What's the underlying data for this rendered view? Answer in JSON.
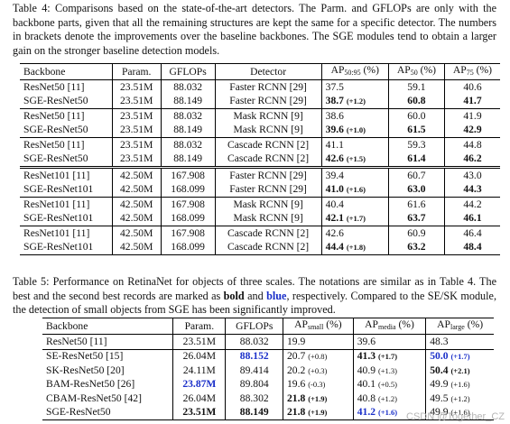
{
  "table4": {
    "caption": "Table 4: Comparisons based on the state-of-the-art detectors. The Parm. and GFLOPs are only with the backbone parts, given that all the remaining structures are kept the same for a specific detector. The numbers in brackets denote the improvements over the baseline backbones. The SGE modules tend to obtain a larger gain on the stronger baseline detection models.",
    "headers": [
      "Backbone",
      "Param.",
      "GFLOPs",
      "Detector",
      "AP",
      "(%)",
      "AP",
      "(%)",
      "AP",
      "(%)"
    ],
    "header_subs": [
      "50:95",
      "50",
      "75"
    ],
    "groups": [
      [
        {
          "backbone": "ResNet50 [11]",
          "param": "23.51M",
          "gflops": "88.032",
          "detector": "Faster RCNN [29]",
          "ap": "37.5",
          "ap50": "59.1",
          "ap75": "40.6",
          "bold": false
        },
        {
          "backbone": "SGE-ResNet50",
          "param": "23.51M",
          "gflops": "88.149",
          "detector": "Faster RCNN [29]",
          "ap": "38.7",
          "imp": "(+1.2)",
          "ap50": "60.8",
          "ap75": "41.7",
          "bold": true
        }
      ],
      [
        {
          "backbone": "ResNet50 [11]",
          "param": "23.51M",
          "gflops": "88.032",
          "detector": "Mask RCNN [9]",
          "ap": "38.6",
          "ap50": "60.0",
          "ap75": "41.9",
          "bold": false
        },
        {
          "backbone": "SGE-ResNet50",
          "param": "23.51M",
          "gflops": "88.149",
          "detector": "Mask RCNN [9]",
          "ap": "39.6",
          "imp": "(+1.0)",
          "ap50": "61.5",
          "ap75": "42.9",
          "bold": true
        }
      ],
      [
        {
          "backbone": "ResNet50 [11]",
          "param": "23.51M",
          "gflops": "88.032",
          "detector": "Cascade RCNN [2]",
          "ap": "41.1",
          "ap50": "59.3",
          "ap75": "44.8",
          "bold": false
        },
        {
          "backbone": "SGE-ResNet50",
          "param": "23.51M",
          "gflops": "88.149",
          "detector": "Cascade RCNN [2]",
          "ap": "42.6",
          "imp": "(+1.5)",
          "ap50": "61.4",
          "ap75": "46.2",
          "bold": true
        }
      ],
      [
        {
          "backbone": "ResNet101 [11]",
          "param": "42.50M",
          "gflops": "167.908",
          "detector": "Faster RCNN [29]",
          "ap": "39.4",
          "ap50": "60.7",
          "ap75": "43.0",
          "bold": false
        },
        {
          "backbone": "SGE-ResNet101",
          "param": "42.50M",
          "gflops": "168.099",
          "detector": "Faster RCNN [29]",
          "ap": "41.0",
          "imp": "(+1.6)",
          "ap50": "63.0",
          "ap75": "44.3",
          "bold": true
        }
      ],
      [
        {
          "backbone": "ResNet101 [11]",
          "param": "42.50M",
          "gflops": "167.908",
          "detector": "Mask RCNN [9]",
          "ap": "40.4",
          "ap50": "61.6",
          "ap75": "44.2",
          "bold": false
        },
        {
          "backbone": "SGE-ResNet101",
          "param": "42.50M",
          "gflops": "168.099",
          "detector": "Mask RCNN [9]",
          "ap": "42.1",
          "imp": "(+1.7)",
          "ap50": "63.7",
          "ap75": "46.1",
          "bold": true
        }
      ],
      [
        {
          "backbone": "ResNet101 [11]",
          "param": "42.50M",
          "gflops": "167.908",
          "detector": "Cascade RCNN [2]",
          "ap": "42.6",
          "ap50": "60.9",
          "ap75": "46.4",
          "bold": false
        },
        {
          "backbone": "SGE-ResNet101",
          "param": "42.50M",
          "gflops": "168.099",
          "detector": "Cascade RCNN [2]",
          "ap": "44.4",
          "imp": "(+1.8)",
          "ap50": "63.2",
          "ap75": "48.4",
          "bold": true
        }
      ]
    ]
  },
  "table5": {
    "caption_parts": [
      "Table 5: Performance on RetinaNet for objects of three scales. The notations are similar as in Table 4. The best and the second best records are marked as ",
      "bold",
      " and ",
      "blue",
      ", respectively. Compared to the SE/SK module, the detection of small objects from SGE has been significantly improved."
    ],
    "headers": [
      "Backbone",
      "Param.",
      "GFLOPs",
      "AP",
      "(%)",
      "AP",
      "(%)",
      "AP",
      "(%)"
    ],
    "header_subs": [
      "small",
      "media",
      "large"
    ],
    "rows": [
      {
        "backbone": "ResNet50 [11]",
        "param": "23.51M",
        "gflops": "88.032",
        "small": "19.9",
        "media": "39.6",
        "large": "48.3"
      },
      {
        "backbone": "SE-ResNet50 [15]",
        "param": "26.04M",
        "gflops": "88.152",
        "small": "20.7",
        "small_imp": "(+0.8)",
        "media": "41.3",
        "media_imp": "(+1.7)",
        "large": "50.0",
        "large_imp": "(+1.7)"
      },
      {
        "backbone": "SK-ResNet50 [20]",
        "param": "24.11M",
        "gflops": "89.414",
        "small": "20.2",
        "small_imp": "(+0.3)",
        "media": "40.9",
        "media_imp": "(+1.3)",
        "large": "50.4",
        "large_imp": "(+2.1)"
      },
      {
        "backbone": "BAM-ResNet50 [26]",
        "param": "23.87M",
        "gflops": "89.804",
        "small": "19.6",
        "small_imp": "(-0.3)",
        "media": "40.1",
        "media_imp": "(+0.5)",
        "large": "49.9",
        "large_imp": "(+1.6)"
      },
      {
        "backbone": "CBAM-ResNet50 [42]",
        "param": "26.04M",
        "gflops": "88.302",
        "small": "21.8",
        "small_imp": "(+1.9)",
        "media": "40.8",
        "media_imp": "(+1.2)",
        "large": "49.5",
        "large_imp": "(+1.2)"
      },
      {
        "backbone": "SGE-ResNet50",
        "param": "23.51M",
        "gflops": "88.149",
        "small": "21.8",
        "small_imp": "(+1.9)",
        "media": "41.2",
        "media_imp": "(+1.6)",
        "large": "49.9",
        "large_imp": "(+1.6)"
      }
    ]
  },
  "watermark": "CSDN @Together_CZ"
}
